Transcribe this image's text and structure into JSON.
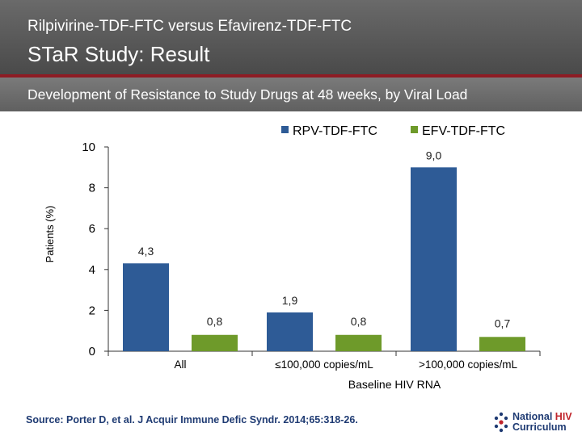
{
  "header": {
    "subtitle": "Rilpivirine-TDF-FTC versus Efavirenz-TDF-FTC",
    "title": "STaR Study: Result",
    "banner": "Development of Resistance to Study Drugs at 48 weeks, by Viral Load"
  },
  "chart_data": {
    "type": "bar",
    "title": "",
    "categories": [
      "All",
      "≤100,000 copies/mL",
      ">100,000 copies/mL"
    ],
    "series": [
      {
        "name": "RPV-TDF-FTC",
        "values": [
          4.3,
          1.9,
          9.0
        ],
        "labels": [
          "4,3",
          "1,9",
          "9,0"
        ],
        "color": "#2e5b96"
      },
      {
        "name": "EFV-TDF-FTC",
        "values": [
          0.8,
          0.8,
          0.7
        ],
        "labels": [
          "0,8",
          "0,8",
          "0,7"
        ],
        "color": "#6e9a2a"
      }
    ],
    "xlabel": "Baseline HIV RNA",
    "ylabel": "Patients (%)",
    "ylim": [
      0,
      10
    ],
    "yticks": [
      0,
      2,
      4,
      6,
      8,
      10
    ],
    "legend_position": "top-right"
  },
  "footer": {
    "source": "Source: Porter D, et al. J Acquir Immune Defic Syndr. 2014;65:318-26.",
    "logo_line1": "National",
    "logo_line1_accent": "HIV",
    "logo_line2": "Curriculum"
  },
  "colors": {
    "rule": "#8e1c24",
    "source_text": "#1f3b73",
    "logo_accent": "#c0262d"
  }
}
